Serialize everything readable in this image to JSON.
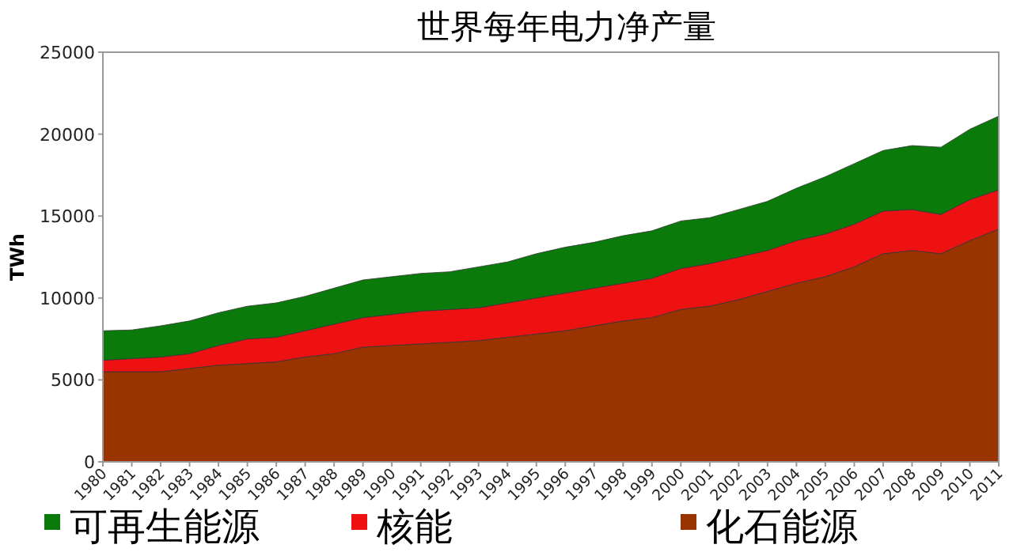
{
  "chart_data": {
    "type": "area",
    "title": "世界每年电力净产量",
    "ylabel": "TWh",
    "stacked": true,
    "legend": "bottom",
    "grid": false,
    "categories": [
      "1980",
      "1981",
      "1982",
      "1983",
      "1984",
      "1985",
      "1986",
      "1987",
      "1988",
      "1989",
      "1990",
      "1991",
      "1992",
      "1993",
      "1994",
      "1995",
      "1996",
      "1997",
      "1998",
      "1999",
      "2000",
      "2001",
      "2002",
      "2003",
      "2004",
      "2005",
      "2006",
      "2007",
      "2008",
      "2009",
      "2010",
      "2011"
    ],
    "ylim": [
      0,
      25000
    ],
    "yticks": [
      0,
      5000,
      10000,
      15000,
      20000,
      25000
    ],
    "series": [
      {
        "name": "化石能源",
        "color": "#993300",
        "values": [
          5500,
          5500,
          5500,
          5700,
          5900,
          6000,
          6100,
          6400,
          6600,
          7000,
          7100,
          7200,
          7300,
          7400,
          7600,
          7800,
          8000,
          8300,
          8600,
          8800,
          9300,
          9500,
          9900,
          10400,
          10900,
          11300,
          11900,
          12700,
          12900,
          12700,
          13500,
          14200
        ]
      },
      {
        "name": "核能",
        "color": "#ee1111",
        "values": [
          700,
          800,
          900,
          900,
          1200,
          1500,
          1500,
          1600,
          1800,
          1800,
          1900,
          2000,
          2000,
          2000,
          2100,
          2200,
          2300,
          2300,
          2300,
          2400,
          2500,
          2600,
          2600,
          2500,
          2600,
          2600,
          2600,
          2600,
          2500,
          2400,
          2500,
          2400
        ]
      },
      {
        "name": "可再生能源",
        "color": "#0a7a0a",
        "values": [
          1800,
          1750,
          1900,
          2000,
          2000,
          2000,
          2100,
          2100,
          2200,
          2300,
          2300,
          2300,
          2300,
          2500,
          2500,
          2700,
          2800,
          2800,
          2900,
          2900,
          2900,
          2800,
          2900,
          3000,
          3200,
          3500,
          3700,
          3700,
          3900,
          4100,
          4300,
          4500
        ]
      }
    ]
  }
}
